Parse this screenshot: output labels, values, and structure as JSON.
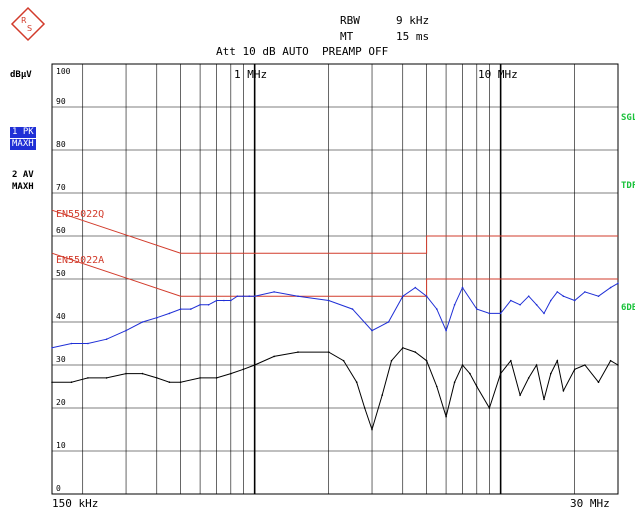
{
  "header": {
    "rbw_label": "RBW",
    "rbw_value": "9 kHz",
    "mt_label": "MT",
    "mt_value": "15 ms",
    "att_line": "Att 10 dB AUTO  PREAMP OFF"
  },
  "side": {
    "unit": "dBµV",
    "trace1_num": "1 PK",
    "trace1_mode": "MAXH",
    "trace2_num": "2 AV",
    "trace2_mode": "MAXH",
    "right_labels": [
      "SGL",
      "TDF",
      "6DB"
    ]
  },
  "colors": {
    "trace1": "#1f2fd6",
    "trace2": "#000000",
    "limit": "#d23b2b",
    "green": "#19c23a"
  },
  "chart_data": {
    "type": "line",
    "x_scale": "log",
    "xlabel_left": "150 kHz",
    "xlabel_right": "30 MHz",
    "xlim": [
      0.15,
      30
    ],
    "ylim": [
      0,
      100
    ],
    "y_ticks": [
      0,
      10,
      20,
      30,
      40,
      50,
      60,
      70,
      80,
      90,
      100
    ],
    "top_freq_labels": [
      {
        "freq": 1,
        "label": "1 MHz"
      },
      {
        "freq": 10,
        "label": "10 MHz"
      }
    ],
    "limit_lines": [
      {
        "name": "EN55022Q",
        "points": [
          [
            0.15,
            66
          ],
          [
            0.5,
            56
          ],
          [
            5,
            56
          ],
          [
            5,
            60
          ],
          [
            30,
            60
          ]
        ]
      },
      {
        "name": "EN55022A",
        "points": [
          [
            0.15,
            56
          ],
          [
            0.5,
            46
          ],
          [
            5,
            46
          ],
          [
            5,
            50
          ],
          [
            30,
            50
          ]
        ]
      }
    ],
    "series": [
      {
        "name": "1 PK MAXH",
        "x": [
          0.15,
          0.18,
          0.21,
          0.25,
          0.3,
          0.35,
          0.4,
          0.45,
          0.5,
          0.55,
          0.6,
          0.65,
          0.7,
          0.75,
          0.8,
          0.85,
          0.9,
          0.95,
          1,
          1.2,
          1.5,
          2,
          2.5,
          3,
          3.5,
          4,
          4.5,
          5,
          5.5,
          6,
          6.5,
          7,
          8,
          9,
          10,
          11,
          12,
          13,
          14,
          15,
          16,
          17,
          18,
          20,
          22,
          25,
          28,
          30
        ],
        "values": [
          34,
          35,
          35,
          36,
          38,
          40,
          41,
          42,
          43,
          43,
          44,
          44,
          45,
          45,
          45,
          46,
          46,
          46,
          46,
          47,
          46,
          45,
          43,
          38,
          40,
          46,
          48,
          46,
          43,
          38,
          44,
          48,
          43,
          42,
          42,
          45,
          44,
          46,
          44,
          42,
          45,
          47,
          46,
          45,
          47,
          46,
          48,
          49
        ]
      },
      {
        "name": "2 AV MAXH",
        "x": [
          0.15,
          0.18,
          0.21,
          0.25,
          0.3,
          0.35,
          0.4,
          0.45,
          0.5,
          0.6,
          0.7,
          0.8,
          0.9,
          1,
          1.2,
          1.5,
          2,
          2.3,
          2.6,
          2.8,
          3,
          3.3,
          3.6,
          4,
          4.5,
          5,
          5.5,
          6,
          6.5,
          7,
          7.5,
          8,
          9,
          10,
          11,
          12,
          13,
          14,
          15,
          16,
          17,
          18,
          20,
          22,
          25,
          28,
          30
        ],
        "values": [
          26,
          26,
          27,
          27,
          28,
          28,
          27,
          26,
          26,
          27,
          27,
          28,
          29,
          30,
          32,
          33,
          33,
          31,
          26,
          20,
          15,
          23,
          31,
          34,
          33,
          31,
          25,
          18,
          26,
          30,
          28,
          25,
          20,
          28,
          31,
          23,
          27,
          30,
          22,
          28,
          31,
          24,
          29,
          30,
          26,
          31,
          30
        ]
      }
    ]
  }
}
